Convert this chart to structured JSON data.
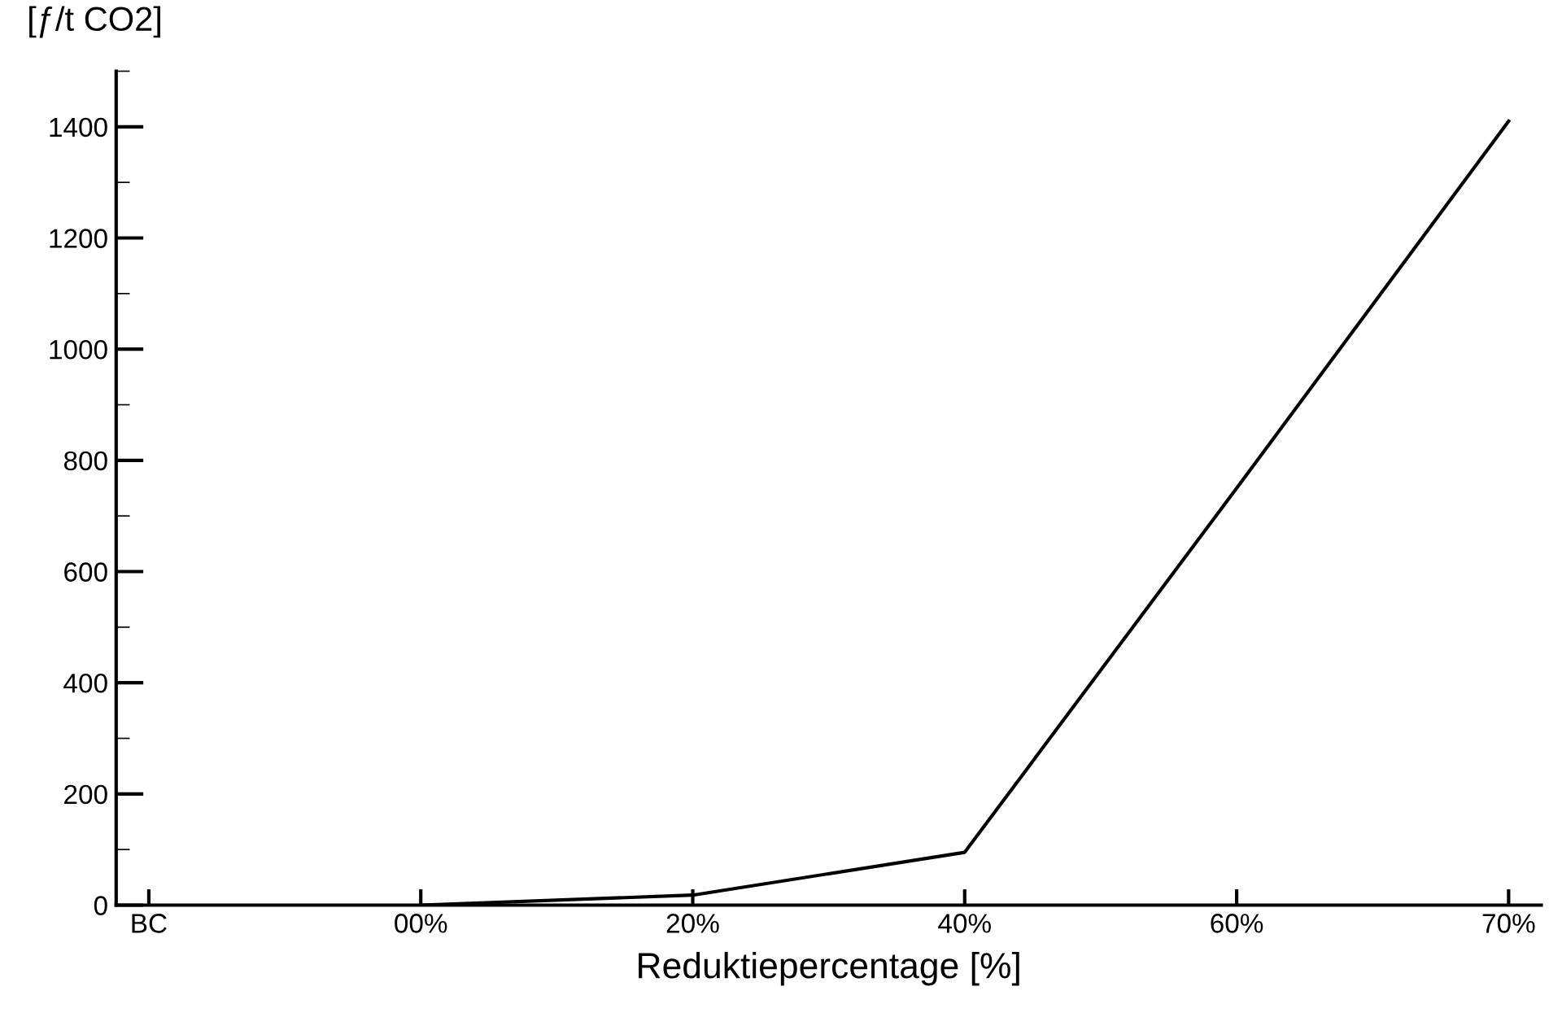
{
  "chart_data": {
    "type": "line",
    "ylabel": "[ƒ/t CO2]",
    "xlabel": "Reduktiepercentage [%]",
    "categories": [
      "BC",
      "00%",
      "20%",
      "40%",
      "60%",
      "70%"
    ],
    "series": [
      {
        "color": "#000000",
        "values": [
          null,
          0,
          18,
          95,
          750,
          1410
        ]
      }
    ],
    "ylim": [
      0,
      1500
    ],
    "yticks": [
      0,
      200,
      400,
      600,
      800,
      1000,
      1200,
      1400
    ],
    "grid": false,
    "marker": "none",
    "line_style": "solid"
  }
}
